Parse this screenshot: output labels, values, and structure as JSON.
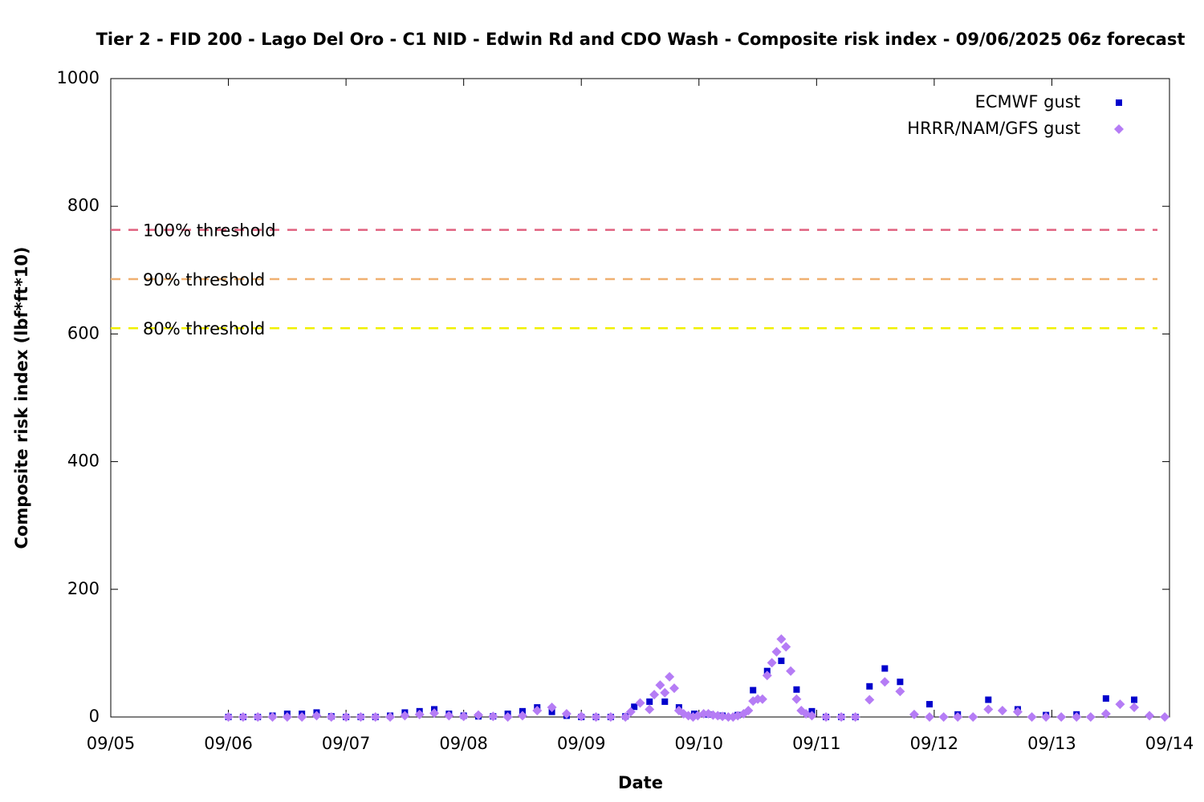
{
  "chart_data": {
    "type": "scatter",
    "title": "Tier 2 - FID 200 - Lago Del Oro - C1 NID - Edwin Rd and CDO Wash - Composite risk index - 09/06/2025 06z forecast",
    "x_label": "Date",
    "y_label": "Composite risk index (lbf*ft*10)",
    "xlim": [
      0,
      9
    ],
    "xticks": [
      {
        "value": 0,
        "label": "09/05"
      },
      {
        "value": 1,
        "label": "09/06"
      },
      {
        "value": 2,
        "label": "09/07"
      },
      {
        "value": 3,
        "label": "09/08"
      },
      {
        "value": 4,
        "label": "09/09"
      },
      {
        "value": 5,
        "label": "09/10"
      },
      {
        "value": 6,
        "label": "09/11"
      },
      {
        "value": 7,
        "label": "09/12"
      },
      {
        "value": 8,
        "label": "09/13"
      },
      {
        "value": 9,
        "label": "09/14"
      }
    ],
    "ylim": [
      0,
      1000
    ],
    "yticks": [
      0,
      200,
      400,
      600,
      800,
      1000
    ],
    "legend": "top-right",
    "thresholds": [
      {
        "name": "100% threshold",
        "value": 763,
        "color": "#e0607e"
      },
      {
        "name": "90% threshold",
        "value": 686,
        "color": "#f0b070"
      },
      {
        "name": "80% threshold",
        "value": 609,
        "color": "#f0f000"
      }
    ],
    "series": [
      {
        "name": "ECMWF gust",
        "color": "#0000cc",
        "marker": "square",
        "x": [
          1.0,
          1.125,
          1.25,
          1.375,
          1.5,
          1.625,
          1.75,
          1.875,
          2.0,
          2.125,
          2.25,
          2.375,
          2.5,
          2.625,
          2.75,
          2.875,
          3.0,
          3.125,
          3.25,
          3.375,
          3.5,
          3.625,
          3.75,
          3.875,
          4.0,
          4.125,
          4.25,
          4.375,
          4.45,
          4.58,
          4.71,
          4.83,
          4.96,
          5.08,
          5.2,
          5.33,
          5.46,
          5.58,
          5.7,
          5.83,
          5.96,
          6.08,
          6.21,
          6.33,
          6.45,
          6.58,
          6.71,
          6.96,
          7.2,
          7.46,
          7.71,
          7.95,
          8.21,
          8.46,
          8.7
        ],
        "values": [
          0,
          0,
          0,
          2,
          5,
          5,
          7,
          1,
          0,
          0,
          0,
          2,
          7,
          9,
          12,
          5,
          2,
          1,
          1,
          5,
          9,
          15,
          8,
          2,
          0,
          0,
          0,
          1,
          16,
          24,
          24,
          15,
          5,
          4,
          2,
          3,
          42,
          72,
          88,
          43,
          9,
          0,
          0,
          0,
          48,
          76,
          55,
          20,
          4,
          27,
          12,
          3,
          4,
          29,
          27
        ]
      },
      {
        "name": "HRRR/NAM/GFS gust",
        "color": "#b57cf5",
        "marker": "diamond",
        "x": [
          1.0,
          1.125,
          1.25,
          1.375,
          1.5,
          1.625,
          1.75,
          1.875,
          2.0,
          2.125,
          2.25,
          2.375,
          2.5,
          2.625,
          2.75,
          2.875,
          3.0,
          3.125,
          3.25,
          3.375,
          3.5,
          3.625,
          3.75,
          3.875,
          4.0,
          4.125,
          4.25,
          4.375,
          4.42,
          4.5,
          4.58,
          4.62,
          4.67,
          4.71,
          4.75,
          4.79,
          4.83,
          4.87,
          4.91,
          4.95,
          4.99,
          5.04,
          5.08,
          5.12,
          5.16,
          5.2,
          5.25,
          5.29,
          5.33,
          5.38,
          5.42,
          5.46,
          5.5,
          5.54,
          5.58,
          5.62,
          5.66,
          5.7,
          5.74,
          5.78,
          5.83,
          5.87,
          5.91,
          5.96,
          6.08,
          6.21,
          6.33,
          6.45,
          6.58,
          6.71,
          6.83,
          6.96,
          7.08,
          7.2,
          7.33,
          7.46,
          7.58,
          7.71,
          7.83,
          7.95,
          8.08,
          8.21,
          8.33,
          8.46,
          8.58,
          8.7,
          8.83,
          8.96
        ],
        "values": [
          0,
          0,
          0,
          0,
          0,
          0,
          2,
          0,
          0,
          0,
          0,
          0,
          2,
          4,
          6,
          2,
          1,
          3,
          1,
          0,
          2,
          10,
          15,
          5,
          1,
          0,
          0,
          0,
          8,
          22,
          12,
          35,
          50,
          38,
          63,
          45,
          10,
          5,
          2,
          0,
          2,
          5,
          5,
          3,
          2,
          1,
          0,
          0,
          2,
          5,
          10,
          25,
          28,
          28,
          65,
          85,
          102,
          122,
          110,
          72,
          28,
          10,
          5,
          2,
          0,
          0,
          0,
          27,
          55,
          40,
          4,
          0,
          0,
          0,
          0,
          12,
          10,
          8,
          0,
          0,
          0,
          0,
          0,
          5,
          20,
          15,
          2,
          0
        ]
      }
    ]
  }
}
